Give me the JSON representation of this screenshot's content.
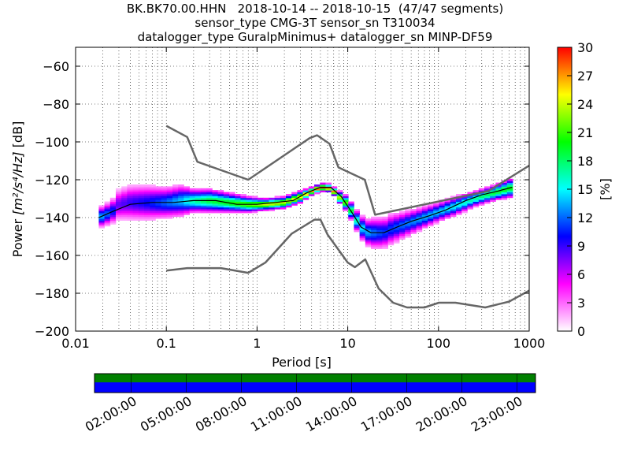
{
  "title_lines": [
    "BK.BK70.00.HHN   2018-10-14 -- 2018-10-15  (47/47 segments)",
    "sensor_type CMG-3T sensor_sn T310034",
    "datalogger_type GuralpMinimus+ datalogger_sn MINP-DF59"
  ],
  "chart_data": {
    "type": "heatmap",
    "xlabel": "Period [s]",
    "ylabel_prefix": "Power ",
    "ylabel_unit": "[m²/s⁴/Hz]",
    "ylabel_suffix": " [dB]",
    "xscale": "log",
    "xlim": [
      0.01,
      1000
    ],
    "ylim": [
      -200,
      -50
    ],
    "x_ticks": [
      0.01,
      0.1,
      1,
      10,
      100,
      1000
    ],
    "x_tick_labels": [
      "0.01",
      "0.1",
      "1",
      "10",
      "100",
      "1000"
    ],
    "y_ticks": [
      -200,
      -180,
      -160,
      -140,
      -120,
      -100,
      -80,
      -60
    ],
    "y_tick_labels": [
      "−200",
      "−180",
      "−160",
      "−140",
      "−120",
      "−100",
      "−80",
      "−60"
    ],
    "grid": true,
    "colorbar": {
      "label": "[%]",
      "range": [
        0,
        30
      ],
      "ticks": [
        0,
        3,
        6,
        9,
        12,
        15,
        18,
        21,
        24,
        27,
        30
      ],
      "tick_labels": [
        "0",
        "3",
        "6",
        "9",
        "12",
        "15",
        "18",
        "21",
        "24",
        "27",
        "30"
      ],
      "colors": [
        "#ffffff",
        "#ff00ff",
        "#0000ff",
        "#00ffff",
        "#00ff00",
        "#ffff00",
        "#ff0000"
      ]
    },
    "nhnm": {
      "name": "NHNM",
      "color": "#666666",
      "x": [
        0.1,
        0.17,
        0.22,
        0.8,
        3.8,
        4.6,
        6.3,
        7.9,
        15.4,
        20,
        354,
        1000
      ],
      "y": [
        -91.5,
        -97.4,
        -110.5,
        -120,
        -98,
        -96.5,
        -101,
        -113.5,
        -120,
        -138.5,
        -126,
        -112.5
      ]
    },
    "nlnm": {
      "name": "NLNM",
      "color": "#666666",
      "x": [
        0.1,
        0.17,
        0.4,
        0.8,
        1.24,
        2.4,
        4.3,
        5,
        6,
        10,
        12,
        15.6,
        21.9,
        31.6,
        45,
        70,
        101,
        154,
        328,
        600,
        1000
      ],
      "y": [
        -168,
        -166.7,
        -166.7,
        -169.2,
        -163.7,
        -148.6,
        -141.1,
        -141.1,
        -149,
        -163.8,
        -166.2,
        -162.1,
        -177.5,
        -185,
        -187.5,
        -187.5,
        -185,
        -185,
        -187.5,
        -184.4,
        -178.6
      ]
    },
    "mean_curve": {
      "name": "mean",
      "color": "#000000",
      "x": [
        0.018,
        0.025,
        0.04,
        0.07,
        0.12,
        0.2,
        0.35,
        0.6,
        1,
        1.6,
        2.5,
        3.5,
        5,
        6.5,
        8.5,
        11,
        14,
        18,
        25,
        35,
        50,
        80,
        120,
        200,
        300,
        450,
        650
      ],
      "y": [
        -140,
        -137,
        -133,
        -132,
        -132,
        -131,
        -131,
        -133,
        -133,
        -132,
        -131,
        -127,
        -124,
        -124,
        -129,
        -137,
        -145,
        -148,
        -148,
        -145,
        -142,
        -139,
        -136,
        -131,
        -128,
        -126,
        -124
      ]
    },
    "density_band": {
      "x": [
        0.018,
        0.025,
        0.03,
        0.04,
        0.06,
        0.1,
        0.15,
        0.2,
        0.3,
        0.5,
        0.8,
        1.2,
        2,
        3,
        4,
        5,
        6,
        7,
        8,
        10,
        12,
        14,
        17,
        20,
        25,
        30,
        40,
        60,
        100,
        150,
        250,
        400,
        650
      ],
      "center": [
        -140,
        -137,
        -133,
        -132,
        -132,
        -132,
        -131,
        -131,
        -131,
        -132,
        -133,
        -133,
        -132,
        -129,
        -126,
        -124,
        -124,
        -126,
        -129,
        -133,
        -140,
        -145,
        -148,
        -148,
        -148,
        -146,
        -144,
        -141,
        -137,
        -134,
        -130,
        -127,
        -124
      ],
      "spread": [
        5,
        6,
        8,
        9,
        9,
        8,
        8,
        6,
        6,
        5,
        4,
        3,
        3,
        3,
        2,
        2,
        2,
        2,
        3,
        4,
        5,
        6,
        7,
        8,
        8,
        8,
        7,
        6,
        5,
        5,
        4,
        4,
        5
      ],
      "peak_percent": [
        14,
        11,
        8,
        9,
        10,
        12,
        14,
        17,
        19,
        20,
        22,
        24,
        24,
        25,
        27,
        29,
        29,
        28,
        24,
        21,
        17,
        15,
        13,
        12,
        11,
        11,
        12,
        13,
        14,
        15,
        17,
        19,
        20
      ]
    }
  },
  "timeline": {
    "data_color": "#008000",
    "coverage_color": "#0000ff",
    "tick_labels": [
      "02:00:00",
      "05:00:00",
      "08:00:00",
      "11:00:00",
      "14:00:00",
      "17:00:00",
      "20:00:00",
      "23:00:00"
    ],
    "tick_hours": [
      2,
      5,
      8,
      11,
      14,
      17,
      20,
      23
    ],
    "range_hours": [
      0,
      24
    ]
  }
}
